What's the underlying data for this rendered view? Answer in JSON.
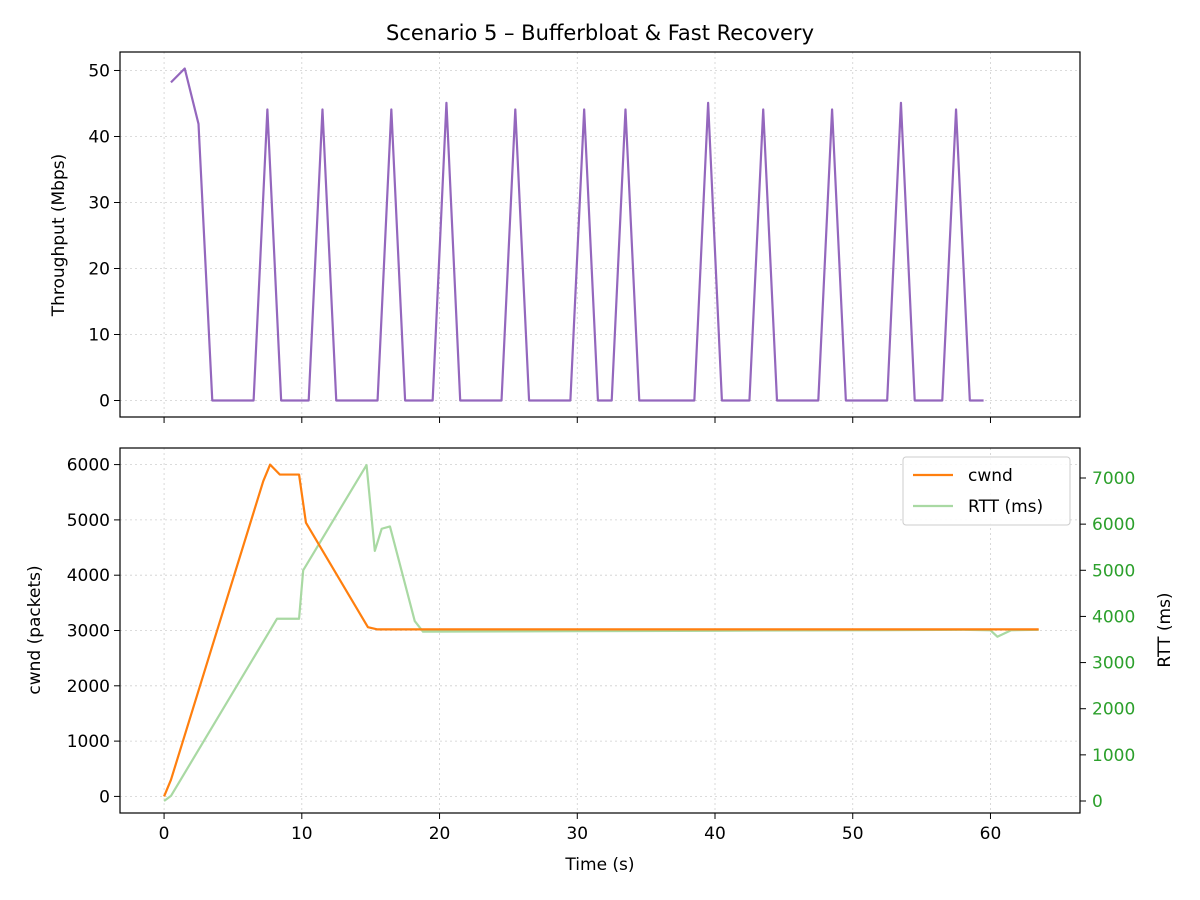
{
  "chart_data": [
    {
      "type": "line",
      "title": "Scenario 5 – Bufferbloat & Fast Recovery",
      "ylabel": "Throughput (Mbps)",
      "xlabel": "",
      "xlim": [
        -3.2,
        66.5
      ],
      "ylim": [
        -2.5,
        52.8
      ],
      "xticks": [
        0,
        10,
        20,
        30,
        40,
        50,
        60
      ],
      "yticks": [
        0,
        10,
        20,
        30,
        40,
        50
      ],
      "ytick_labels": [
        "0",
        "10",
        "20",
        "30",
        "40",
        "50"
      ],
      "grid": true,
      "series": [
        {
          "name": "",
          "color": "#9467bd",
          "x": [
            0.5,
            1.5,
            2.5,
            3.5,
            4.5,
            5.5,
            6.5,
            7.5,
            8.5,
            9.5,
            10.5,
            11.5,
            12.5,
            13.5,
            14.5,
            15.5,
            16.5,
            17.5,
            18.5,
            19.5,
            20.5,
            21.5,
            22.5,
            23.5,
            24.5,
            25.5,
            26.5,
            27.5,
            28.5,
            29.5,
            30.5,
            31.5,
            32.5,
            33.5,
            34.5,
            35.5,
            36.5,
            37.5,
            38.5,
            39.5,
            40.5,
            41.5,
            42.5,
            43.5,
            44.5,
            45.5,
            46.5,
            47.5,
            48.5,
            49.5,
            50.5,
            51.5,
            52.5,
            53.5,
            54.5,
            55.5,
            56.5,
            57.5,
            58.5,
            59.5
          ],
          "y": [
            48.2,
            50.3,
            41.9,
            0,
            0,
            0,
            0,
            44.1,
            0,
            0,
            0,
            44.1,
            0,
            0,
            0,
            0,
            44.1,
            0,
            0,
            0,
            45.1,
            0,
            0,
            0,
            0,
            44.1,
            0,
            0,
            0,
            0,
            44.1,
            0,
            0,
            44.1,
            0,
            0,
            0,
            0,
            0,
            45.1,
            0,
            0,
            0,
            44.1,
            0,
            0,
            0,
            0,
            44.1,
            0,
            0,
            0,
            0,
            45.1,
            0,
            0,
            0,
            44.1,
            0,
            0
          ]
        }
      ]
    },
    {
      "type": "line",
      "title": "",
      "xlabel": "Time (s)",
      "ylabel": "cwnd (packets)",
      "y2label": "RTT (ms)",
      "xlim": [
        -3.2,
        66.5
      ],
      "ylim": [
        -300,
        6300
      ],
      "y2lim": [
        -260,
        7650
      ],
      "xticks": [
        0,
        10,
        20,
        30,
        40,
        50,
        60
      ],
      "xtick_labels": [
        "0",
        "10",
        "20",
        "30",
        "40",
        "50",
        "60"
      ],
      "yticks": [
        0,
        1000,
        2000,
        3000,
        4000,
        5000,
        6000
      ],
      "ytick_labels": [
        "0",
        "1000",
        "2000",
        "3000",
        "4000",
        "5000",
        "6000"
      ],
      "y2ticks": [
        0,
        1000,
        2000,
        3000,
        4000,
        5000,
        6000,
        7000
      ],
      "y2tick_labels": [
        "0",
        "1000",
        "2000",
        "3000",
        "4000",
        "5000",
        "6000",
        "7000"
      ],
      "y2tick_color": "#2ca02c",
      "grid": true,
      "legend": "top-right",
      "series": [
        {
          "name": "cwnd",
          "color": "#ff7f0e",
          "axis": "left",
          "x": [
            0,
            0.5,
            7.2,
            7.7,
            8.4,
            9.8,
            10.3,
            14.8,
            15.5,
            20,
            30,
            40,
            50,
            60,
            63.5
          ],
          "y": [
            0,
            300,
            5700,
            6000,
            5820,
            5820,
            4950,
            3060,
            3020,
            3020,
            3020,
            3020,
            3020,
            3020,
            3020
          ]
        },
        {
          "name": "RTT (ms)",
          "color": "#a9d9a3",
          "axis": "right",
          "x": [
            0,
            0.5,
            8.2,
            9.8,
            10.1,
            14.7,
            15.3,
            15.8,
            16.4,
            18.2,
            18.8,
            30,
            40,
            50,
            58,
            60,
            60.5,
            61.5,
            63.5
          ],
          "y": [
            0,
            110,
            3950,
            3950,
            5000,
            7280,
            5420,
            5900,
            5950,
            3900,
            3670,
            3680,
            3690,
            3700,
            3710,
            3700,
            3560,
            3700,
            3710
          ]
        }
      ]
    }
  ]
}
